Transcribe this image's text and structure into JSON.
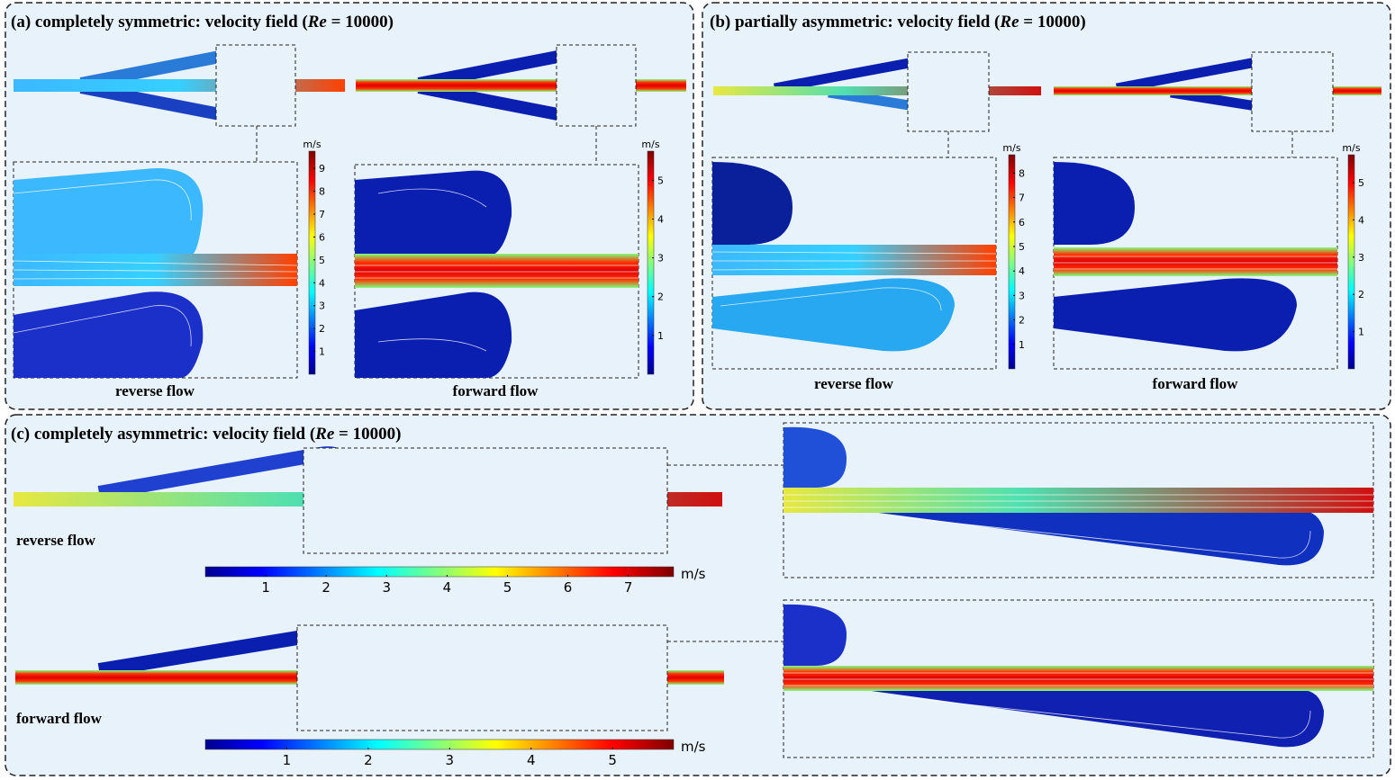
{
  "panels": [
    {
      "title": {
        "prefix": "(a) completely symmetric: velocity field (",
        "re": "Re",
        "suffix": " = 10000)"
      },
      "views": [
        {
          "label": "reverse flow",
          "colorbar": {
            "unit": "m/s",
            "ticks": [
              1,
              2,
              3,
              4,
              5,
              6,
              7,
              8,
              9
            ]
          }
        },
        {
          "label": "forward flow",
          "colorbar": {
            "unit": "m/s",
            "ticks": [
              1,
              2,
              3,
              4,
              5
            ]
          }
        }
      ]
    },
    {
      "title": {
        "prefix": "(b) partially asymmetric: velocity field (",
        "re": "Re",
        "suffix": " = 10000)"
      },
      "views": [
        {
          "label": "reverse flow",
          "colorbar": {
            "unit": "m/s",
            "ticks": [
              1,
              2,
              3,
              4,
              5,
              6,
              7,
              8
            ]
          }
        },
        {
          "label": "forward flow",
          "colorbar": {
            "unit": "m/s",
            "ticks": [
              1,
              2,
              3,
              4,
              5
            ]
          }
        }
      ]
    },
    {
      "title": {
        "prefix": "(c) completely asymmetric: velocity field (",
        "re": "Re",
        "suffix": " = 10000)"
      },
      "views": [
        {
          "label": "reverse flow",
          "colorbar": {
            "unit": "m/s",
            "ticks": [
              1,
              2,
              3,
              4,
              5,
              6,
              7
            ]
          }
        },
        {
          "label": "forward flow",
          "colorbar": {
            "unit": "m/s",
            "ticks": [
              1,
              2,
              3,
              4,
              5
            ]
          }
        }
      ]
    }
  ]
}
